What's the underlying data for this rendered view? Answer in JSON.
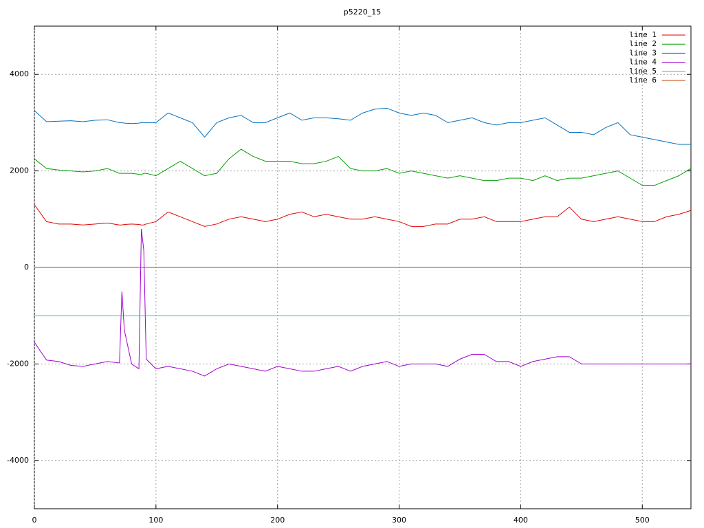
{
  "chart_data": {
    "type": "line",
    "title": "p5220_15",
    "x": [
      0,
      10,
      20,
      30,
      40,
      50,
      60,
      70,
      72,
      74,
      80,
      86,
      88,
      90,
      92,
      100,
      110,
      120,
      130,
      140,
      150,
      160,
      170,
      180,
      190,
      200,
      210,
      220,
      230,
      240,
      250,
      260,
      270,
      280,
      290,
      300,
      310,
      320,
      330,
      340,
      350,
      360,
      370,
      380,
      390,
      400,
      410,
      420,
      430,
      440,
      450,
      460,
      470,
      480,
      490,
      500,
      510,
      520,
      530,
      540
    ],
    "xlim": [
      0,
      540
    ],
    "xticks": [
      0,
      100,
      200,
      300,
      400,
      500
    ],
    "ylim": [
      -5000,
      5000
    ],
    "yticks": [
      -4000,
      -2000,
      0,
      2000,
      4000
    ],
    "grid": true,
    "legend": "top right",
    "series": [
      {
        "name": "line 1",
        "color": "#e00000",
        "values": [
          1300,
          950,
          900,
          900,
          880,
          900,
          920,
          880,
          880,
          890,
          900,
          890,
          880,
          880,
          900,
          950,
          1150,
          1050,
          950,
          850,
          900,
          1000,
          1050,
          1000,
          950,
          1000,
          1100,
          1150,
          1050,
          1100,
          1050,
          1000,
          1000,
          1050,
          1000,
          950,
          850,
          850,
          900,
          900,
          1000,
          1000,
          1050,
          950,
          950,
          950,
          1000,
          1050,
          1050,
          1250,
          1000,
          950,
          1000,
          1050,
          1000,
          950,
          950,
          1050,
          1100,
          1180
        ]
      },
      {
        "name": "line 2",
        "color": "#00a000",
        "values": [
          2250,
          2050,
          2020,
          2000,
          1980,
          2000,
          2050,
          1950,
          1950,
          1950,
          1950,
          1930,
          1920,
          1950,
          1950,
          1900,
          2050,
          2200,
          2050,
          1900,
          1950,
          2250,
          2450,
          2300,
          2200,
          2200,
          2200,
          2150,
          2150,
          2200,
          2300,
          2050,
          2000,
          2000,
          2050,
          1950,
          2000,
          1950,
          1900,
          1850,
          1900,
          1850,
          1800,
          1800,
          1850,
          1850,
          1800,
          1900,
          1800,
          1850,
          1850,
          1900,
          1950,
          2000,
          1850,
          1700,
          1700,
          1800,
          1900,
          2050
        ]
      },
      {
        "name": "line 3",
        "color": "#0070c0",
        "values": [
          3250,
          3020,
          3030,
          3040,
          3020,
          3050,
          3060,
          3000,
          3000,
          2990,
          2980,
          2990,
          3000,
          3000,
          3000,
          3000,
          3200,
          3100,
          3000,
          2700,
          3000,
          3100,
          3150,
          3000,
          3000,
          3100,
          3200,
          3050,
          3100,
          3100,
          3080,
          3050,
          3200,
          3280,
          3300,
          3200,
          3150,
          3200,
          3150,
          3000,
          3050,
          3100,
          3000,
          2950,
          3000,
          3000,
          3050,
          3100,
          2950,
          2800,
          2800,
          2750,
          2900,
          3000,
          2750,
          2700,
          2650,
          2600,
          2550,
          2550
        ]
      },
      {
        "name": "line 4",
        "color": "#a000d0",
        "values": [
          -1550,
          -1920,
          -1950,
          -2030,
          -2050,
          -2000,
          -1950,
          -1980,
          -500,
          -1300,
          -2000,
          -2100,
          800,
          350,
          -1900,
          -2100,
          -2050,
          -2100,
          -2150,
          -2250,
          -2100,
          -2000,
          -2050,
          -2100,
          -2150,
          -2050,
          -2100,
          -2150,
          -2150,
          -2100,
          -2050,
          -2150,
          -2050,
          -2000,
          -1950,
          -2050,
          -2000,
          -2000,
          -2000,
          -2050,
          -1900,
          -1800,
          -1800,
          -1950,
          -1950,
          -2050,
          -1950,
          -1900,
          -1850,
          -1850,
          -2000,
          -2000,
          -2000,
          -2000,
          -2000,
          -2000,
          -2000,
          -2000,
          -2000,
          -2000
        ]
      },
      {
        "name": "line 5",
        "color": "#00d0d0",
        "values": [
          -1000,
          -1000,
          -1000,
          -1000,
          -1000,
          -1000,
          -1000,
          -1000,
          -1000,
          -1000,
          -1000,
          -1000,
          -1000,
          -1000,
          -1000,
          -1000,
          -1000,
          -1000,
          -1000,
          -1000,
          -1000,
          -1000,
          -1000,
          -1000,
          -1000,
          -1000,
          -1000,
          -1000,
          -1000,
          -1000,
          -1000,
          -1000,
          -1000,
          -1000,
          -1000,
          -1000,
          -1000,
          -1000,
          -1000,
          -1000,
          -1000,
          -1000,
          -1000,
          -1000,
          -1000,
          -1000,
          -1000,
          -1000,
          -1000,
          -1000,
          -1000,
          -1000,
          -1000,
          -1000,
          -1000,
          -1000,
          -1000,
          -1000,
          -1000,
          -1000
        ]
      },
      {
        "name": "line 6",
        "color": "#c04000",
        "values": [
          0,
          0,
          0,
          0,
          0,
          0,
          0,
          0,
          0,
          0,
          0,
          0,
          0,
          0,
          0,
          0,
          0,
          0,
          0,
          0,
          0,
          0,
          0,
          0,
          0,
          0,
          0,
          0,
          0,
          0,
          0,
          0,
          0,
          0,
          0,
          0,
          0,
          0,
          0,
          0,
          0,
          0,
          0,
          0,
          0,
          0,
          0,
          0,
          0,
          0,
          0,
          0,
          0,
          0,
          0,
          0,
          0,
          0,
          0,
          0
        ]
      }
    ]
  }
}
